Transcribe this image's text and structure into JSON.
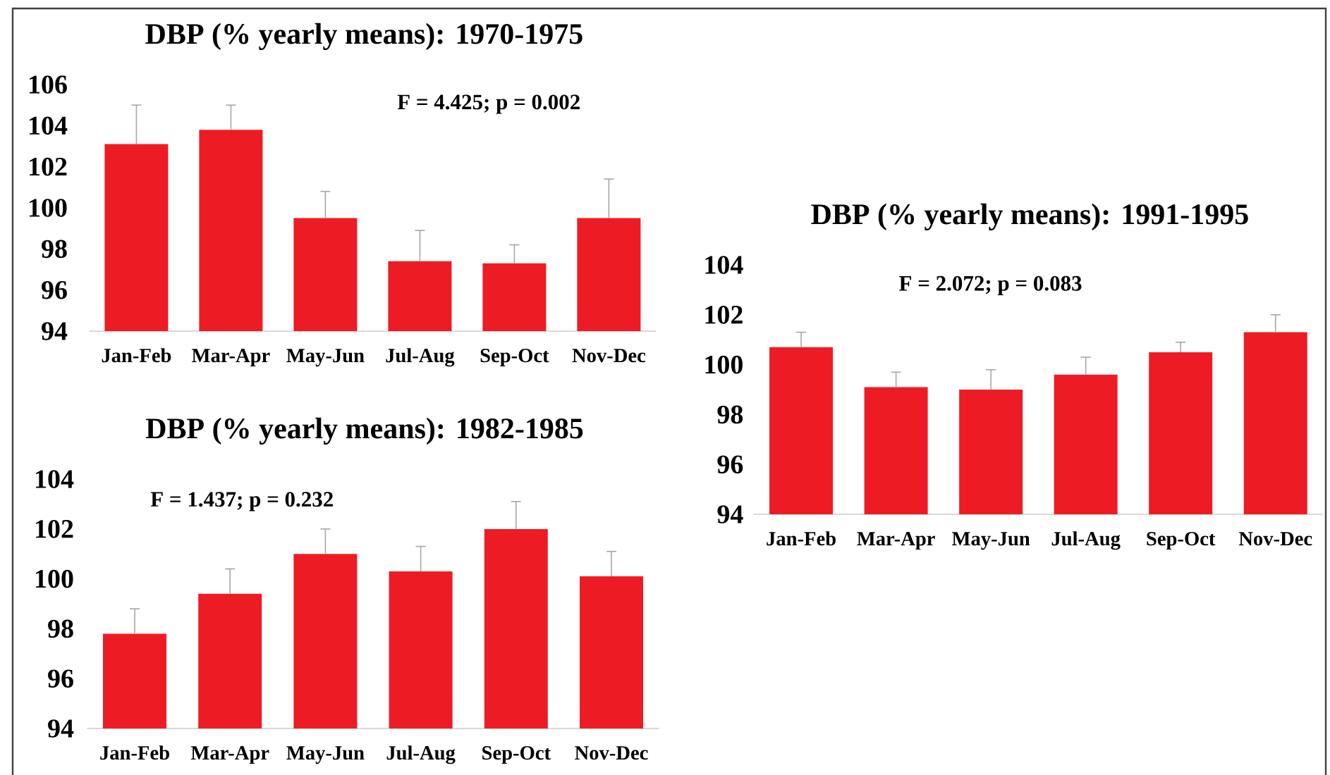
{
  "chart_data": [
    {
      "type": "bar",
      "title": "DBP (% yearly means): 1970-1975",
      "categories": [
        "Jan-Feb",
        "Mar-Apr",
        "May-Jun",
        "Jul-Aug",
        "Sep-Oct",
        "Nov-Dec"
      ],
      "values": [
        103.1,
        103.8,
        99.5,
        97.4,
        97.3,
        99.5
      ],
      "errors": [
        [
          103.1,
          105.0
        ],
        [
          103.8,
          105.0
        ],
        [
          99.5,
          100.8
        ],
        [
          97.4,
          98.9
        ],
        [
          97.3,
          98.2
        ],
        [
          99.5,
          101.4
        ]
      ],
      "color": "#ed1c24",
      "ylim": [
        94,
        106
      ],
      "yticks": [
        94,
        96,
        98,
        100,
        102,
        104,
        106
      ],
      "annotations": [
        "F = 4.425; p = 0.002"
      ]
    },
    {
      "type": "bar",
      "title": "DBP (% yearly means): 1982-1985",
      "categories": [
        "Jan-Feb",
        "Mar-Apr",
        "May-Jun",
        "Jul-Aug",
        "Sep-Oct",
        "Nov-Dec"
      ],
      "values": [
        97.8,
        99.4,
        101.0,
        100.3,
        102.0,
        100.1
      ],
      "errors": [
        [
          97.8,
          98.8
        ],
        [
          99.4,
          100.4
        ],
        [
          101.0,
          102.0
        ],
        [
          100.3,
          101.3
        ],
        [
          102.0,
          103.1
        ],
        [
          100.1,
          101.1
        ]
      ],
      "color": "#ed1c24",
      "ylim": [
        94,
        104
      ],
      "yticks": [
        94,
        96,
        98,
        100,
        102,
        104
      ],
      "annotations": [
        "F = 1.437; p = 0.232"
      ]
    },
    {
      "type": "bar",
      "title": "DBP (% yearly means): 1991-1995",
      "categories": [
        "Jan-Feb",
        "Mar-Apr",
        "May-Jun",
        "Jul-Aug",
        "Sep-Oct",
        "Nov-Dec"
      ],
      "values": [
        100.7,
        99.1,
        99.0,
        99.6,
        100.5,
        101.3
      ],
      "errors": [
        [
          100.7,
          101.3
        ],
        [
          99.1,
          99.7
        ],
        [
          99.0,
          99.8
        ],
        [
          99.6,
          100.3
        ],
        [
          100.5,
          100.9
        ],
        [
          101.3,
          102.0
        ]
      ],
      "color": "#ed1c24",
      "ylim": [
        94,
        104
      ],
      "yticks": [
        94,
        96,
        98,
        100,
        102,
        104
      ],
      "annotations": [
        "F = 2.072; p = 0.083"
      ]
    }
  ]
}
